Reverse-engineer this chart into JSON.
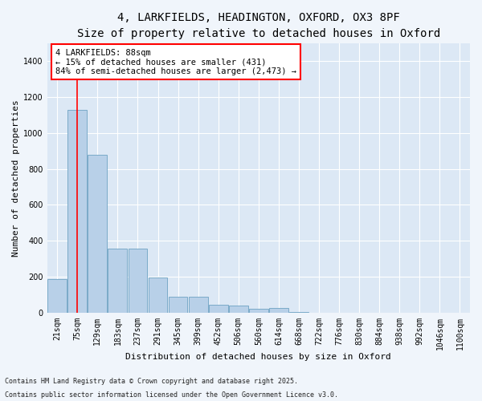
{
  "title_line1": "4, LARKFIELDS, HEADINGTON, OXFORD, OX3 8PF",
  "title_line2": "Size of property relative to detached houses in Oxford",
  "xlabel": "Distribution of detached houses by size in Oxford",
  "ylabel": "Number of detached properties",
  "bar_color": "#b8d0e8",
  "bar_edge_color": "#7aaac8",
  "bg_color": "#dce8f5",
  "grid_color": "#ffffff",
  "fig_bg_color": "#f0f5fb",
  "categories": [
    "21sqm",
    "75sqm",
    "129sqm",
    "183sqm",
    "237sqm",
    "291sqm",
    "345sqm",
    "399sqm",
    "452sqm",
    "506sqm",
    "560sqm",
    "614sqm",
    "668sqm",
    "722sqm",
    "776sqm",
    "830sqm",
    "884sqm",
    "938sqm",
    "992sqm",
    "1046sqm",
    "1100sqm"
  ],
  "values": [
    185,
    1130,
    880,
    355,
    355,
    195,
    90,
    90,
    45,
    40,
    20,
    25,
    5,
    0,
    0,
    0,
    0,
    0,
    0,
    0,
    0
  ],
  "ylim": [
    0,
    1500
  ],
  "yticks": [
    0,
    200,
    400,
    600,
    800,
    1000,
    1200,
    1400
  ],
  "red_line_x": 1,
  "annotation_title": "4 LARKFIELDS: 88sqm",
  "annotation_line1": "← 15% of detached houses are smaller (431)",
  "annotation_line2": "84% of semi-detached houses are larger (2,473) →",
  "footnote_line1": "Contains HM Land Registry data © Crown copyright and database right 2025.",
  "footnote_line2": "Contains public sector information licensed under the Open Government Licence v3.0.",
  "title_fontsize": 10,
  "subtitle_fontsize": 9,
  "axis_label_fontsize": 8,
  "tick_fontsize": 7,
  "annotation_fontsize": 7.5,
  "footnote_fontsize": 6
}
